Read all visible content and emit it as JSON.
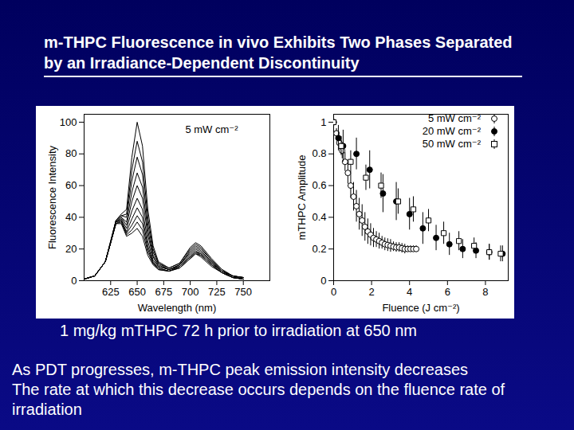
{
  "title": "m-THPC Fluorescence in vivo Exhibits Two Phases Separated by an Irradiance-Dependent Discontinuity",
  "caption": "1 mg/kg mTHPC 72 h prior to irradiation at 650 nm",
  "text": [
    "As PDT progresses, m-THPC peak emission intensity decreases",
    "The rate at which this decrease occurs depends on the fluence rate of irradiation"
  ],
  "chart_data": [
    {
      "type": "line",
      "annotation": "5 mW cm⁻²",
      "x_label": "Wavelength (nm)",
      "y_label": "Fluorescence Intensity",
      "x": [
        600,
        610,
        620,
        625,
        630,
        635,
        640,
        645,
        650,
        655,
        660,
        665,
        670,
        680,
        690,
        700,
        705,
        710,
        720,
        730,
        740,
        750
      ],
      "xlim": [
        600,
        775
      ],
      "xticks": [
        625,
        650,
        675,
        700,
        725,
        750
      ],
      "ylim": [
        0,
        105
      ],
      "yticks": [
        0,
        20,
        40,
        60,
        80,
        100
      ],
      "series": [
        {
          "color": "#000000",
          "values": [
            1,
            3,
            12,
            25,
            38,
            42,
            45,
            78,
            100,
            85,
            45,
            22,
            12,
            8,
            11,
            21,
            24,
            22,
            14,
            7,
            3,
            2
          ]
        },
        {
          "color": "#000000",
          "values": [
            1,
            3,
            12,
            25,
            38,
            41,
            42,
            70,
            88,
            75,
            40,
            20,
            11,
            8,
            11,
            20,
            23,
            21,
            13,
            7,
            3,
            2
          ]
        },
        {
          "color": "#000000",
          "values": [
            1,
            3,
            12,
            24,
            38,
            41,
            40,
            63,
            78,
            67,
            36,
            18,
            11,
            7,
            10,
            19,
            22,
            20,
            13,
            6,
            3,
            2
          ]
        },
        {
          "color": "#000000",
          "values": [
            1,
            3,
            12,
            24,
            37,
            40,
            37,
            56,
            68,
            59,
            32,
            16,
            10,
            7,
            10,
            18,
            21,
            19,
            12,
            6,
            3,
            2
          ]
        },
        {
          "color": "#000000",
          "values": [
            1,
            3,
            12,
            24,
            37,
            40,
            35,
            50,
            60,
            52,
            29,
            15,
            9,
            7,
            10,
            17,
            20,
            18,
            12,
            6,
            3,
            1
          ]
        },
        {
          "color": "#000000",
          "values": [
            1,
            3,
            12,
            24,
            37,
            39,
            33,
            44,
            52,
            45,
            25,
            13,
            9,
            7,
            9,
            16,
            19,
            17,
            11,
            6,
            2,
            1
          ]
        },
        {
          "color": "#000000",
          "values": [
            1,
            3,
            12,
            24,
            37,
            38,
            31,
            39,
            46,
            40,
            22,
            12,
            8,
            6,
            9,
            15,
            18,
            17,
            11,
            5,
            2,
            1
          ]
        },
        {
          "color": "#000000",
          "values": [
            1,
            3,
            12,
            24,
            36,
            38,
            30,
            35,
            41,
            36,
            20,
            11,
            8,
            6,
            9,
            15,
            18,
            16,
            10,
            5,
            2,
            1
          ]
        },
        {
          "color": "#000000",
          "values": [
            1,
            3,
            12,
            24,
            36,
            37,
            29,
            32,
            37,
            32,
            18,
            11,
            7,
            6,
            8,
            14,
            17,
            16,
            10,
            5,
            2,
            1
          ]
        },
        {
          "color": "#000000",
          "values": [
            1,
            3,
            12,
            24,
            36,
            36,
            28,
            30,
            33,
            28,
            16,
            10,
            7,
            6,
            8,
            14,
            17,
            15,
            9,
            5,
            2,
            1
          ]
        }
      ]
    },
    {
      "type": "scatter",
      "x_label": "Fluence (J cm⁻²)",
      "y_label": "mTHPC Amplitude",
      "xlim": [
        0,
        9.2
      ],
      "xticks": [
        0,
        2,
        4,
        6,
        8
      ],
      "ylim": [
        0,
        1.05
      ],
      "yticks": [
        0,
        0.2,
        0.4,
        0.6,
        0.8,
        1
      ],
      "legend": "top-right",
      "series": [
        {
          "name": "5 mW cm⁻²",
          "color": "#000000",
          "marker": "circle-open",
          "x": [
            0,
            0.15,
            0.3,
            0.45,
            0.6,
            0.75,
            0.9,
            1.05,
            1.2,
            1.35,
            1.5,
            1.65,
            1.8,
            1.95,
            2.1,
            2.25,
            2.4,
            2.55,
            2.7,
            2.85,
            3.0,
            3.15,
            3.3,
            3.45,
            3.6,
            3.75,
            3.9,
            4.05,
            4.2,
            4.35
          ],
          "values": [
            1,
            0.93,
            0.87,
            0.82,
            0.75,
            0.68,
            0.6,
            0.53,
            0.47,
            0.42,
            0.38,
            0.34,
            0.31,
            0.29,
            0.27,
            0.26,
            0.25,
            0.24,
            0.23,
            0.225,
            0.22,
            0.215,
            0.21,
            0.21,
            0.205,
            0.2,
            0.2,
            0.2,
            0.2,
            0.2
          ],
          "errors": [
            0,
            0.03,
            0.04,
            0.05,
            0.06,
            0.07,
            0.08,
            0.09,
            0.1,
            0.1,
            0.1,
            0.09,
            0.08,
            0.07,
            0.06,
            0.05,
            0.05,
            0.04,
            0.04,
            0.04,
            0.04,
            0.03,
            0.03,
            0.03,
            0.03,
            0.03,
            0.02,
            0.02,
            0.02,
            0.02
          ]
        },
        {
          "name": "20 mW cm⁻²",
          "color": "#000000",
          "marker": "circle",
          "x": [
            0,
            0.25,
            0.5,
            1.2,
            1.9,
            2.6,
            3.3,
            4.0,
            4.7,
            5.4,
            6.1,
            6.8,
            7.5,
            8.2,
            8.9
          ],
          "values": [
            1,
            0.9,
            0.85,
            0.8,
            0.7,
            0.55,
            0.5,
            0.42,
            0.33,
            0.27,
            0.23,
            0.2,
            0.19,
            0.18,
            0.17
          ],
          "errors": [
            0,
            0.08,
            0.1,
            0.1,
            0.12,
            0.12,
            0.12,
            0.1,
            0.1,
            0.08,
            0.07,
            0.06,
            0.05,
            0.05,
            0.05
          ]
        },
        {
          "name": "50 mW cm⁻²",
          "color": "#000000",
          "marker": "square-open",
          "x": [
            0,
            0.4,
            0.9,
            1.7,
            2.5,
            3.4,
            4.2,
            5.0,
            5.8,
            6.6,
            7.4,
            8.2,
            8.8
          ],
          "values": [
            1,
            0.85,
            0.75,
            0.65,
            0.6,
            0.5,
            0.45,
            0.38,
            0.3,
            0.25,
            0.22,
            0.18,
            0.17
          ],
          "errors": [
            0,
            0.06,
            0.07,
            0.08,
            0.08,
            0.08,
            0.08,
            0.07,
            0.07,
            0.06,
            0.05,
            0.05,
            0.05
          ]
        }
      ]
    }
  ]
}
